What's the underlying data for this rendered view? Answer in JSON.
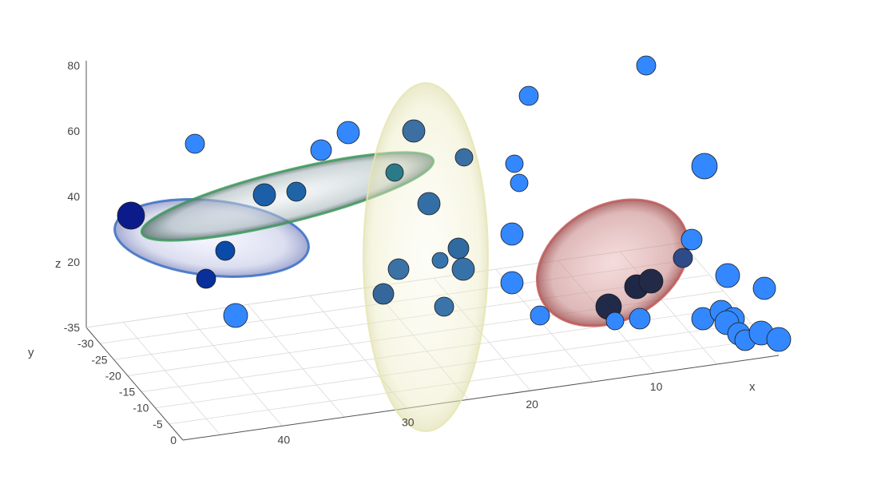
{
  "chart_data": {
    "type": "scatter",
    "x_axis": {
      "label": "x",
      "ticks": [
        10,
        20,
        30,
        40
      ]
    },
    "y_axis": {
      "label": "y",
      "ticks": [
        0,
        -5,
        -10,
        -15,
        -20,
        -25,
        -30,
        -35
      ]
    },
    "z_axis": {
      "label": "z",
      "ticks": [
        20,
        40,
        60,
        80
      ]
    },
    "marker_color": "#3388ff",
    "points": [
      {
        "x": 46,
        "y": -28,
        "z": 34
      },
      {
        "x": 43,
        "y": -26,
        "z": 54
      },
      {
        "x": 44,
        "y": -22,
        "z": 23
      },
      {
        "x": 44,
        "y": -21,
        "z": 13
      },
      {
        "x": 40,
        "y": -20,
        "z": 3
      },
      {
        "x": 38,
        "y": -25,
        "z": 40
      },
      {
        "x": 37,
        "y": -24,
        "z": 41
      },
      {
        "x": 36,
        "y": -26,
        "z": 55
      },
      {
        "x": 34,
        "y": -27,
        "z": 60
      },
      {
        "x": 33,
        "y": -25,
        "z": 48
      },
      {
        "x": 31,
        "y": -20,
        "z": 38
      },
      {
        "x": 31,
        "y": -27,
        "z": 72
      },
      {
        "x": 31,
        "y": -26,
        "z": 63
      },
      {
        "x": 30,
        "y": -22,
        "z": 50
      },
      {
        "x": 29,
        "y": -16,
        "z": 22
      },
      {
        "x": 30,
        "y": -15,
        "z": 16
      },
      {
        "x": 31,
        "y": -13,
        "z": 10
      },
      {
        "x": 29,
        "y": -12,
        "z": 4
      },
      {
        "x": 28,
        "y": -10,
        "z": 20
      },
      {
        "x": 28,
        "y": -12,
        "z": 19
      },
      {
        "x": 23,
        "y": -30,
        "z": 78
      },
      {
        "x": 23,
        "y": -10,
        "z": 44
      },
      {
        "x": 23,
        "y": -12,
        "z": 50
      },
      {
        "x": 22,
        "y": -6,
        "z": 28
      },
      {
        "x": 22,
        "y": -3,
        "z": 14
      },
      {
        "x": 20,
        "y": 0,
        "z": 2
      },
      {
        "x": 18,
        "y": -2,
        "z": 8
      },
      {
        "x": 17,
        "y": -3,
        "z": 12
      },
      {
        "x": 15,
        "y": -1,
        "z": 12
      },
      {
        "x": 14,
        "y": -2,
        "z": 14
      },
      {
        "x": 13,
        "y": -25,
        "z": 88
      },
      {
        "x": 12,
        "y": -11,
        "z": 52
      },
      {
        "x": 10,
        "y": -3,
        "z": 28
      },
      {
        "x": 11,
        "y": -2,
        "z": 22
      },
      {
        "x": 12,
        "y": 0,
        "z": 12
      },
      {
        "x": 9,
        "y": -1,
        "z": 15
      },
      {
        "x": 9,
        "y": 0,
        "z": 8
      },
      {
        "x": 8,
        "y": 0,
        "z": 10
      },
      {
        "x": 7,
        "y": 0,
        "z": 6
      },
      {
        "x": 7,
        "y": -3,
        "z": 22
      },
      {
        "x": 5,
        "y": 0,
        "z": 9
      },
      {
        "x": 5,
        "y": -1,
        "z": 14
      },
      {
        "x": 5,
        "y": -2,
        "z": 12
      },
      {
        "x": 4,
        "y": -2,
        "z": 12
      }
    ],
    "ellipsoids": [
      {
        "name": "blue",
        "color": "#3a6fc4",
        "center_x": 42,
        "center_y": -22,
        "center_z": 27
      },
      {
        "name": "green",
        "color": "#3d9a5a",
        "center_x": 36,
        "center_y": -24,
        "center_z": 43
      },
      {
        "name": "yellow",
        "color": "#e6e6b0",
        "center_x": 29,
        "center_y": -15,
        "center_z": 30
      },
      {
        "name": "red",
        "color": "#c05a5a",
        "center_x": 17,
        "center_y": -4,
        "center_z": 16
      }
    ]
  }
}
